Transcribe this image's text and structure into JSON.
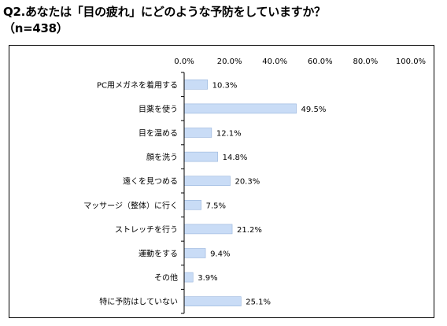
{
  "title": {
    "line1": "Q2.あなたは「目の疲れ」にどのような予防をしていますか？",
    "line2": "（n=438）"
  },
  "colors": {
    "bar_fill": "#c9dcf6",
    "bar_stroke": "#98b4dc",
    "axis": "#000000",
    "frame": "#000000"
  },
  "chart_data": {
    "type": "bar",
    "orientation": "horizontal",
    "categories": [
      "PC用メガネを着用する",
      "目薬を使う",
      "目を温める",
      "顔を洗う",
      "遠くを見つめる",
      "マッサージ（整体）に行く",
      "ストレッチを行う",
      "運動をする",
      "その他",
      "特に予防はしていない"
    ],
    "values": [
      10.3,
      49.5,
      12.1,
      14.8,
      20.3,
      7.5,
      21.2,
      9.4,
      3.9,
      25.1
    ],
    "value_labels": [
      "10.3%",
      "49.5%",
      "12.1%",
      "14.8%",
      "20.3%",
      "7.5%",
      "21.2%",
      "9.4%",
      "3.9%",
      "25.1%"
    ],
    "xlim": [
      0,
      100
    ],
    "x_ticks": [
      0,
      20,
      40,
      60,
      80,
      100
    ],
    "x_tick_labels": [
      "0.0%",
      "20.0%",
      "40.0%",
      "60.0%",
      "80.0%",
      "100.0%"
    ],
    "x_axis_position": "top",
    "grid": false,
    "legend": false
  }
}
